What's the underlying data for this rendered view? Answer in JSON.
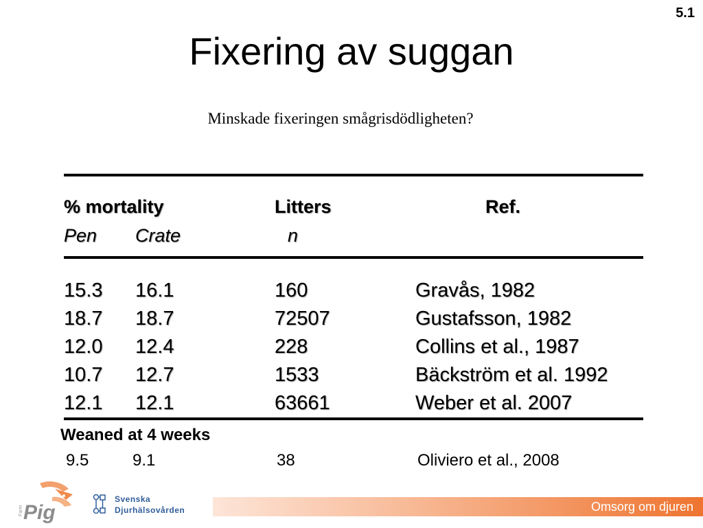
{
  "slide_number": "5.1",
  "title": "Fixering av suggan",
  "subtitle": "Minskade fixeringen smågrisdödligheten?",
  "table": {
    "headers": {
      "mortality": "% mortality",
      "litters": "Litters",
      "ref": "Ref."
    },
    "subheaders": {
      "pen": "Pen",
      "crate": "Crate",
      "n": "n"
    },
    "rows": [
      {
        "pen": "15.3",
        "crate": "16.1",
        "litters": "160",
        "ref": "Gravås, 1982"
      },
      {
        "pen": "18.7",
        "crate": "18.7",
        "litters": "72507",
        "ref": "Gustafsson, 1982"
      },
      {
        "pen": "12.0",
        "crate": "12.4",
        "litters": "228",
        "ref": "Collins et al., 1987"
      },
      {
        "pen": "10.7",
        "crate": "12.7",
        "litters": "1533",
        "ref": "Bäckström et al. 1992"
      },
      {
        "pen": "12.1",
        "crate": "12.1",
        "litters": "63661",
        "ref": "Weber et al. 2007"
      }
    ]
  },
  "weaned": {
    "heading": "Weaned at 4 weeks",
    "row": {
      "pen": "9.5",
      "crate": "9.1",
      "litters": "38",
      "ref": "Oliviero et al., 2008"
    }
  },
  "footer": {
    "label": "Omsorg om djuren",
    "logo_pig": {
      "main": "Pig",
      "small": "Farm"
    },
    "logo_sd": {
      "line1": "Svenska",
      "line2": "Djurhälsovården"
    },
    "accent_color": "#ee7430"
  }
}
